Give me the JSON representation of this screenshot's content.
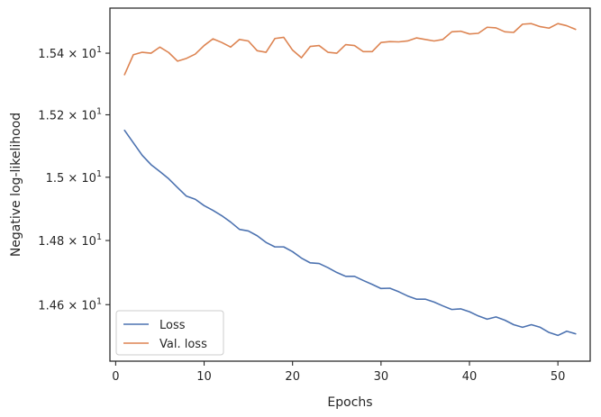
{
  "chart_data": {
    "type": "line",
    "title": "",
    "xlabel": "Epochs",
    "ylabel": "Negative log-likelihood",
    "xlim": [
      -0.65,
      53.65
    ],
    "ylim": [
      14.426,
      15.548
    ],
    "y_scale": "log",
    "grid": false,
    "legend_position": "lower-left",
    "x_ticks": [
      0,
      10,
      20,
      30,
      40,
      50
    ],
    "x_tick_labels": [
      "0",
      "10",
      "20",
      "30",
      "40",
      "50"
    ],
    "y_ticks": [
      {
        "value": 14.6,
        "mantissa": "1.46",
        "multiplier": "× 10",
        "exponent": "1"
      },
      {
        "value": 14.8,
        "mantissa": "1.48",
        "multiplier": "× 10",
        "exponent": "1"
      },
      {
        "value": 15.0,
        "mantissa": "1.5",
        "multiplier": "× 10",
        "exponent": "1"
      },
      {
        "value": 15.2,
        "mantissa": "1.52",
        "multiplier": "× 10",
        "exponent": "1"
      },
      {
        "value": 15.4,
        "mantissa": "1.54",
        "multiplier": "× 10",
        "exponent": "1"
      }
    ],
    "x": [
      1,
      2,
      3,
      4,
      5,
      6,
      7,
      8,
      9,
      10,
      11,
      12,
      13,
      14,
      15,
      16,
      17,
      18,
      19,
      20,
      21,
      22,
      23,
      24,
      25,
      26,
      27,
      28,
      29,
      30,
      31,
      32,
      33,
      34,
      35,
      36,
      37,
      38,
      39,
      40,
      41,
      42,
      43,
      44,
      45,
      46,
      47,
      48,
      49,
      50,
      51,
      52
    ],
    "series": [
      {
        "name": "Loss",
        "color": "#4c72b0",
        "values": [
          15.15,
          15.11,
          15.07,
          15.04,
          15.018,
          14.995,
          14.967,
          14.94,
          14.93,
          14.91,
          14.895,
          14.878,
          14.858,
          14.835,
          14.83,
          14.815,
          14.794,
          14.78,
          14.78,
          14.765,
          14.745,
          14.73,
          14.728,
          14.715,
          14.7,
          14.688,
          14.688,
          14.675,
          14.663,
          14.65,
          14.651,
          14.64,
          14.627,
          14.617,
          14.617,
          14.608,
          14.596,
          14.585,
          14.587,
          14.578,
          14.565,
          14.555,
          14.562,
          14.552,
          14.538,
          14.53,
          14.538,
          14.53,
          14.514,
          14.505,
          14.518,
          14.51
        ]
      },
      {
        "name": "Val. loss",
        "color": "#dd8452",
        "values": [
          15.33,
          15.395,
          15.403,
          15.4,
          15.42,
          15.402,
          15.374,
          15.383,
          15.397,
          15.425,
          15.447,
          15.435,
          15.42,
          15.445,
          15.44,
          15.408,
          15.403,
          15.448,
          15.452,
          15.41,
          15.385,
          15.422,
          15.425,
          15.403,
          15.4,
          15.428,
          15.425,
          15.405,
          15.405,
          15.435,
          15.438,
          15.437,
          15.44,
          15.45,
          15.445,
          15.44,
          15.445,
          15.47,
          15.472,
          15.463,
          15.465,
          15.485,
          15.483,
          15.47,
          15.468,
          15.495,
          15.497,
          15.487,
          15.482,
          15.497,
          15.49,
          15.478
        ]
      }
    ]
  }
}
